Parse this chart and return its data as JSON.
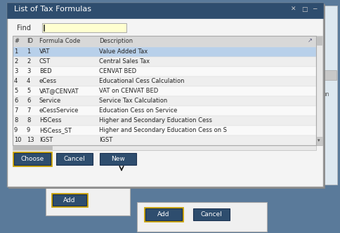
{
  "title": "List of Tax Formulas",
  "title_bar_color": "#2e4d6e",
  "title_text_color": "#ffffff",
  "find_label": "Find",
  "columns": [
    "#",
    "ID",
    "Formula Code",
    "Description"
  ],
  "col_header_bg": "#d8d8d8",
  "rows": [
    [
      "1",
      "1",
      "VAT",
      "Value Added Tax"
    ],
    [
      "2",
      "2",
      "CST",
      "Central Sales Tax"
    ],
    [
      "3",
      "3",
      "BED",
      "CENVAT BED"
    ],
    [
      "4",
      "4",
      "eCess",
      "Educational Cess Calculation"
    ],
    [
      "5",
      "5",
      "VAT@CENVAT",
      "VAT on CENVAT BED"
    ],
    [
      "6",
      "6",
      "Service",
      "Service Tax Calculation"
    ],
    [
      "7",
      "7",
      "eCessService",
      "Education Cess on Service"
    ],
    [
      "8",
      "8",
      "HSCess",
      "Higher and Secondary Education Cess"
    ],
    [
      "9",
      "9",
      "HSCess_ST",
      "Higher and Secondary Education Cess on S"
    ],
    [
      "10",
      "13",
      "IGST",
      "IGST"
    ]
  ],
  "selected_row": 0,
  "selected_row_color": "#b8d0ea",
  "row_even_color": "#f8f8f8",
  "row_odd_color": "#efefef",
  "row_text_color": "#222222",
  "buttons_bottom": [
    "Choose",
    "Cancel",
    "New"
  ],
  "button_bg": "#2e4d6e",
  "button_text_color": "#ffffff",
  "scrollbar_bg": "#e8e8e8",
  "scrollbar_thumb": "#c0c0c0",
  "outer_bg": "#5a7a9a",
  "dialog_bg": "#f4f4f4",
  "add_border": "#c8a000",
  "add_bg": "#2e4d6e",
  "right_panel_bg": "#dde8f0",
  "hscroll_thumb": "#bbbbbb"
}
